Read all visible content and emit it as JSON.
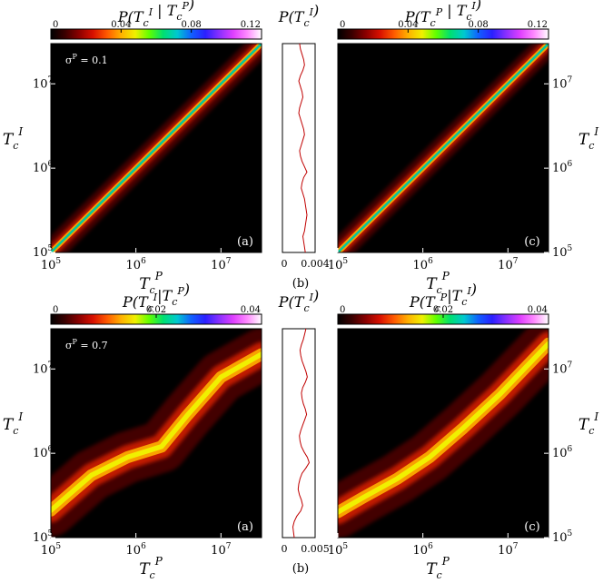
{
  "colors": {
    "colormap": [
      "#000000",
      "#3a0000",
      "#8a0000",
      "#d81000",
      "#ff5a00",
      "#ffb000",
      "#f0f000",
      "#60ff00",
      "#00e070",
      "#00c8d0",
      "#1060ff",
      "#2a20ff",
      "#8a30ff",
      "#e040ff",
      "#ff8cff",
      "#ffffff"
    ],
    "profile_line": "#c00000"
  },
  "chart_data": [
    {
      "type": "heatmap",
      "id": "top-left",
      "title_parts": [
        "P(T",
        "c",
        "I",
        " | T",
        "c",
        "P",
        ")"
      ],
      "colorbar": {
        "min": 0,
        "max": 0.12,
        "ticks": [
          "0",
          "0.04",
          "0.08",
          "0.12"
        ]
      },
      "x_ticks": [
        {
          "base": "10",
          "exp": "5",
          "value": 100000
        },
        {
          "base": "10",
          "exp": "6",
          "value": 1000000
        },
        {
          "base": "10",
          "exp": "7",
          "value": 10000000
        }
      ],
      "y_ticks": [
        {
          "base": "10",
          "exp": "5",
          "value": 100000
        },
        {
          "base": "10",
          "exp": "6",
          "value": 1000000
        },
        {
          "base": "10",
          "exp": "7",
          "value": 10000000
        }
      ],
      "xlabel": {
        "main": "T",
        "sub": "c",
        "sup": "P"
      },
      "ylabel": {
        "main": "T",
        "sub": "c",
        "sup": "I"
      },
      "xlim": [
        100000,
        30000000
      ],
      "ylim": [
        100000,
        30000000
      ],
      "scale": "log",
      "annotation": "σP = 0.1",
      "annotation_sup": "P",
      "panel_label": "(a)",
      "ridge": [
        [
          100000,
          100000
        ],
        [
          1000000,
          1000000
        ],
        [
          10000000,
          10000000
        ],
        [
          30000000,
          30000000
        ]
      ],
      "ridge_peak": 0.08
    },
    {
      "type": "line",
      "id": "top-middle",
      "title_parts": [
        "P(T",
        "c",
        "I",
        ")"
      ],
      "x_ticks": [
        "0",
        "0.004"
      ],
      "xlim": [
        0,
        0.004
      ],
      "y_range": [
        100000,
        30000000
      ],
      "panel_label": "(b)",
      "profile": [
        0.0028,
        0.0027,
        0.0026,
        0.0025,
        0.0027,
        0.0028,
        0.0029,
        0.003,
        0.0029,
        0.0028,
        0.0027,
        0.0025,
        0.0023,
        0.0024,
        0.0026,
        0.003,
        0.0027,
        0.0024,
        0.0022,
        0.0021,
        0.0023,
        0.0025,
        0.0027,
        0.0026,
        0.0024,
        0.0022,
        0.002,
        0.0021,
        0.0023,
        0.0025,
        0.0024,
        0.0022,
        0.002,
        0.0022,
        0.0025,
        0.0027,
        0.0026,
        0.0024,
        0.0022,
        0.0021
      ]
    },
    {
      "type": "heatmap",
      "id": "top-right",
      "title_parts": [
        "P(T",
        "c",
        "P",
        " | T",
        "c",
        "I",
        ")"
      ],
      "colorbar": {
        "min": 0,
        "max": 0.12,
        "ticks": [
          "0",
          "0.04",
          "0.08",
          "0.12"
        ]
      },
      "x_ticks": [
        {
          "base": "10",
          "exp": "5",
          "value": 100000
        },
        {
          "base": "10",
          "exp": "6",
          "value": 1000000
        },
        {
          "base": "10",
          "exp": "7",
          "value": 10000000
        }
      ],
      "y_ticks": [
        {
          "base": "10",
          "exp": "5",
          "value": 100000
        },
        {
          "base": "10",
          "exp": "6",
          "value": 1000000
        },
        {
          "base": "10",
          "exp": "7",
          "value": 10000000
        }
      ],
      "xlabel": {
        "main": "T",
        "sub": "c",
        "sup": "P"
      },
      "ylabel": {
        "main": "T",
        "sub": "c",
        "sup": "I"
      },
      "xlim": [
        100000,
        30000000
      ],
      "ylim": [
        100000,
        30000000
      ],
      "scale": "log",
      "panel_label": "(c)",
      "ridge": [
        [
          100000,
          100000
        ],
        [
          1000000,
          1000000
        ],
        [
          10000000,
          10000000
        ],
        [
          30000000,
          30000000
        ]
      ],
      "ridge_peak": 0.08
    },
    {
      "type": "heatmap",
      "id": "bottom-left",
      "title_parts": [
        "P(T",
        "c",
        "I",
        "|T",
        "c",
        "P",
        ")"
      ],
      "colorbar": {
        "min": 0,
        "max": 0.04,
        "ticks": [
          "0",
          "0.02",
          "0.04"
        ]
      },
      "x_ticks": [
        {
          "base": "10",
          "exp": "5",
          "value": 100000
        },
        {
          "base": "10",
          "exp": "6",
          "value": 1000000
        },
        {
          "base": "10",
          "exp": "7",
          "value": 10000000
        }
      ],
      "y_ticks": [
        {
          "base": "10",
          "exp": "5",
          "value": 100000
        },
        {
          "base": "10",
          "exp": "6",
          "value": 1000000
        },
        {
          "base": "10",
          "exp": "7",
          "value": 10000000
        }
      ],
      "xlabel": {
        "main": "T",
        "sub": "c",
        "sup": "P"
      },
      "ylabel": {
        "main": "T",
        "sub": "c",
        "sup": "I"
      },
      "xlim": [
        100000,
        30000000
      ],
      "ylim": [
        100000,
        30000000
      ],
      "scale": "log",
      "annotation": "σP = 0.7",
      "annotation_sup": "P",
      "panel_label": "(a)",
      "ridge": [
        [
          100000,
          210000
        ],
        [
          150000,
          300000
        ],
        [
          300000,
          550000
        ],
        [
          800000,
          900000
        ],
        [
          2000000,
          1200000
        ],
        [
          4000000,
          2800000
        ],
        [
          10000000,
          8000000
        ],
        [
          30000000,
          15000000
        ]
      ],
      "ridge_peak": 0.02
    },
    {
      "type": "line",
      "id": "bottom-middle",
      "title_parts": [
        "P(T",
        "c",
        "I",
        ")"
      ],
      "x_ticks": [
        "0",
        "0.005"
      ],
      "xlim": [
        0,
        0.005
      ],
      "y_range": [
        100000,
        30000000
      ],
      "panel_label": "(b)",
      "profile": [
        0.0018,
        0.0017,
        0.0016,
        0.0018,
        0.0022,
        0.0028,
        0.0031,
        0.0029,
        0.0026,
        0.0024,
        0.0025,
        0.0027,
        0.003,
        0.0036,
        0.0041,
        0.0038,
        0.0033,
        0.0029,
        0.0027,
        0.0026,
        0.0028,
        0.0031,
        0.0034,
        0.0037,
        0.0035,
        0.0032,
        0.003,
        0.0029,
        0.0031,
        0.0035,
        0.0038,
        0.0036,
        0.0033,
        0.003,
        0.0028,
        0.0027,
        0.0029,
        0.0032,
        0.0034,
        0.0036
      ]
    },
    {
      "type": "heatmap",
      "id": "bottom-right",
      "title_parts": [
        "P(T",
        "c",
        "P",
        "|T",
        "c",
        "I",
        ")"
      ],
      "colorbar": {
        "min": 0,
        "max": 0.04,
        "ticks": [
          "0",
          "0.02",
          "0.04"
        ]
      },
      "x_ticks": [
        {
          "base": "10",
          "exp": "5",
          "value": 100000
        },
        {
          "base": "10",
          "exp": "6",
          "value": 1000000
        },
        {
          "base": "10",
          "exp": "7",
          "value": 10000000
        }
      ],
      "y_ticks": [
        {
          "base": "10",
          "exp": "5",
          "value": 100000
        },
        {
          "base": "10",
          "exp": "6",
          "value": 1000000
        },
        {
          "base": "10",
          "exp": "7",
          "value": 10000000
        }
      ],
      "xlabel": {
        "main": "T",
        "sub": "c",
        "sup": "P"
      },
      "ylabel": {
        "main": "T",
        "sub": "c",
        "sup": "I"
      },
      "xlim": [
        100000,
        30000000
      ],
      "ylim": [
        100000,
        30000000
      ],
      "scale": "log",
      "panel_label": "(c)",
      "ridge": [
        [
          100000,
          200000
        ],
        [
          200000,
          300000
        ],
        [
          500000,
          500000
        ],
        [
          1200000,
          900000
        ],
        [
          3000000,
          2000000
        ],
        [
          8000000,
          5000000
        ],
        [
          30000000,
          20000000
        ]
      ],
      "ridge_peak": 0.02
    }
  ]
}
